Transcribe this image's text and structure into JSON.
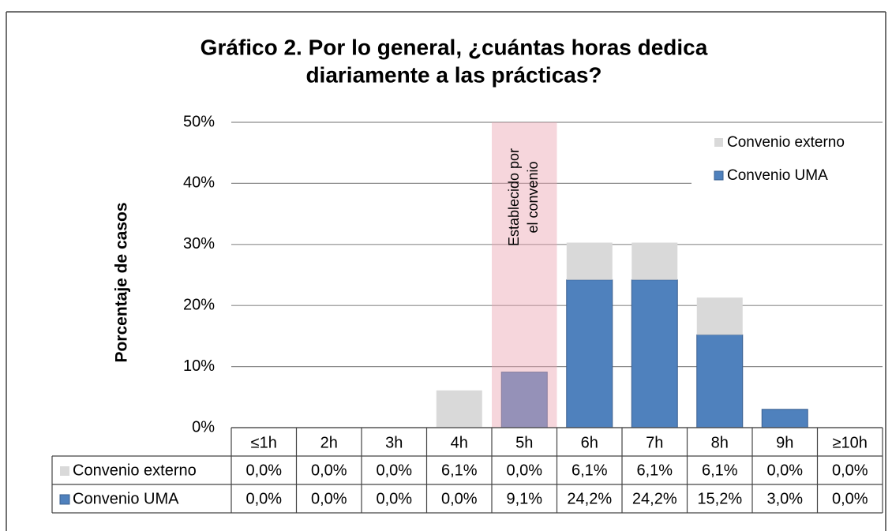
{
  "chart_data": {
    "type": "bar",
    "stacked": true,
    "title": [
      "Gráfico 2. Por lo general, ¿cuántas horas dedica",
      "diariamente a las prácticas?"
    ],
    "y_label": "Porcentaje de casos",
    "annotation": [
      "Establecido por",
      "el convenio"
    ],
    "categories": [
      "≤1h",
      "2h",
      "3h",
      "4h",
      "5h",
      "6h",
      "7h",
      "8h",
      "9h",
      "≥10h"
    ],
    "series": [
      {
        "name": "Convenio externo",
        "color": "#d9d9d9",
        "values": [
          0,
          0,
          0,
          6.1,
          0,
          6.1,
          6.1,
          6.1,
          0,
          0
        ],
        "value_labels": [
          "0,0%",
          "0,0%",
          "0,0%",
          "6,1%",
          "0,0%",
          "6,1%",
          "6,1%",
          "6,1%",
          "0,0%",
          "0,0%"
        ]
      },
      {
        "name": "Convenio UMA",
        "color": "#4f81bd",
        "values": [
          0,
          0,
          0,
          0,
          9.1,
          24.2,
          24.2,
          15.2,
          3.0,
          0
        ],
        "value_labels": [
          "0,0%",
          "0,0%",
          "0,0%",
          "0,0%",
          "9,1%",
          "24,2%",
          "24,2%",
          "15,2%",
          "3,0%",
          "0,0%"
        ]
      }
    ],
    "ylim": [
      0,
      50
    ],
    "yticks": [
      {
        "value": 0,
        "label": "0%"
      },
      {
        "value": 10,
        "label": "10%"
      },
      {
        "value": 20,
        "label": "20%"
      },
      {
        "value": 30,
        "label": "30%"
      },
      {
        "value": 40,
        "label": "40%"
      },
      {
        "value": 50,
        "label": "50%"
      }
    ],
    "grid": true,
    "legend": "top-right"
  }
}
